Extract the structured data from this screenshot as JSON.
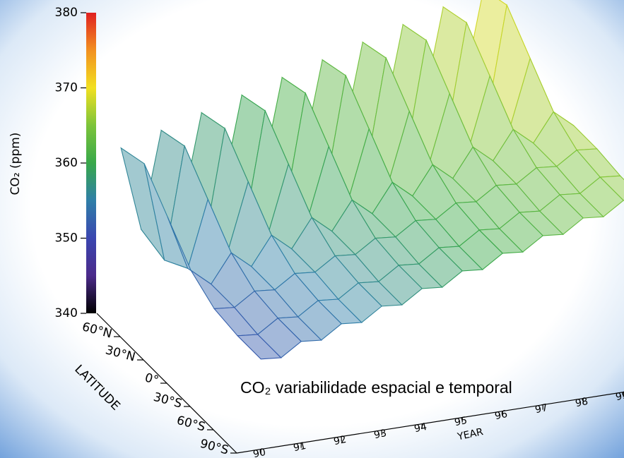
{
  "chart_data": {
    "type": "surface",
    "annotation": "CO₂ variabilidade espacial e temporal",
    "zlabel": "CO₂ (ppm)",
    "ylabel": "LATITUDE",
    "xlabel": "YEAR",
    "x": [
      90,
      90.5,
      91,
      91.5,
      92,
      92.5,
      93,
      93.5,
      94,
      94.5,
      95,
      95.5,
      96,
      96.5,
      97,
      97.5,
      98,
      98.5,
      99,
      99.5
    ],
    "latitudes": [
      -90,
      -60,
      -30,
      0,
      30,
      60,
      90
    ],
    "z": [
      [
        352,
        351.75,
        353.5,
        353.25,
        355,
        354.75,
        356.5,
        356.25,
        358,
        357.75,
        359.5,
        359.25,
        361,
        360.75,
        362.5,
        362.25,
        364,
        363.75,
        365.5,
        365.25
      ],
      [
        352,
        351.75,
        353.5,
        353.25,
        355,
        354.75,
        356.5,
        356.25,
        358,
        357.75,
        359.5,
        359.25,
        361,
        360.75,
        362.5,
        362.25,
        364,
        363.75,
        365.5,
        365.25
      ],
      [
        352.5,
        352.25,
        354,
        353.75,
        355.5,
        355.25,
        357,
        356.75,
        358.5,
        358.25,
        360,
        359.75,
        361.5,
        361.25,
        363,
        362.75,
        364.5,
        364.25,
        366,
        365.75
      ],
      [
        354.5,
        352.25,
        356,
        353.75,
        357.5,
        355.25,
        359,
        356.75,
        360.5,
        358.25,
        362,
        359.75,
        363.5,
        361.25,
        365,
        362.75,
        366.5,
        364.25,
        368,
        365.75
      ],
      [
        358.5,
        351.25,
        360,
        352.75,
        361.5,
        354.25,
        363,
        355.75,
        364.5,
        357.25,
        366,
        358.75,
        367.5,
        360.25,
        369,
        361.75,
        370.5,
        363.25,
        372,
        364.75
      ],
      [
        362.5,
        349.25,
        364,
        350.75,
        365.5,
        352.25,
        367,
        353.75,
        368.5,
        355.25,
        370,
        356.75,
        371.5,
        358.25,
        373,
        359.75,
        374.5,
        361.25,
        376,
        362.75
      ],
      [
        361.5,
        350.25,
        363,
        351.75,
        364.5,
        353.25,
        366,
        354.75,
        367.5,
        356.25,
        369,
        357.75,
        370.5,
        359.25,
        372,
        360.75,
        373.5,
        362.25,
        375,
        363.75
      ]
    ],
    "colors": [
      "#000000",
      "#4b2a8a",
      "#3a46b0",
      "#2f7fa8",
      "#38a84a",
      "#7cc43a",
      "#f2e020",
      "#f29020",
      "#e02020"
    ],
    "xlim": [
      89.4,
      99.6
    ],
    "xticks": [
      90,
      91,
      92,
      93,
      94,
      95,
      96,
      97,
      98,
      99
    ],
    "ylim": [
      -90,
      90
    ],
    "yticks": [
      {
        "value": -90,
        "label": "90°S"
      },
      {
        "value": -60,
        "label": "60°S"
      },
      {
        "value": -30,
        "label": "30°S"
      },
      {
        "value": 0,
        "label": "0°"
      },
      {
        "value": 30,
        "label": "30°N"
      },
      {
        "value": 60,
        "label": "60°N"
      }
    ],
    "zlim": [
      340,
      380
    ],
    "zticks": [
      340,
      350,
      360,
      370,
      380
    ]
  }
}
